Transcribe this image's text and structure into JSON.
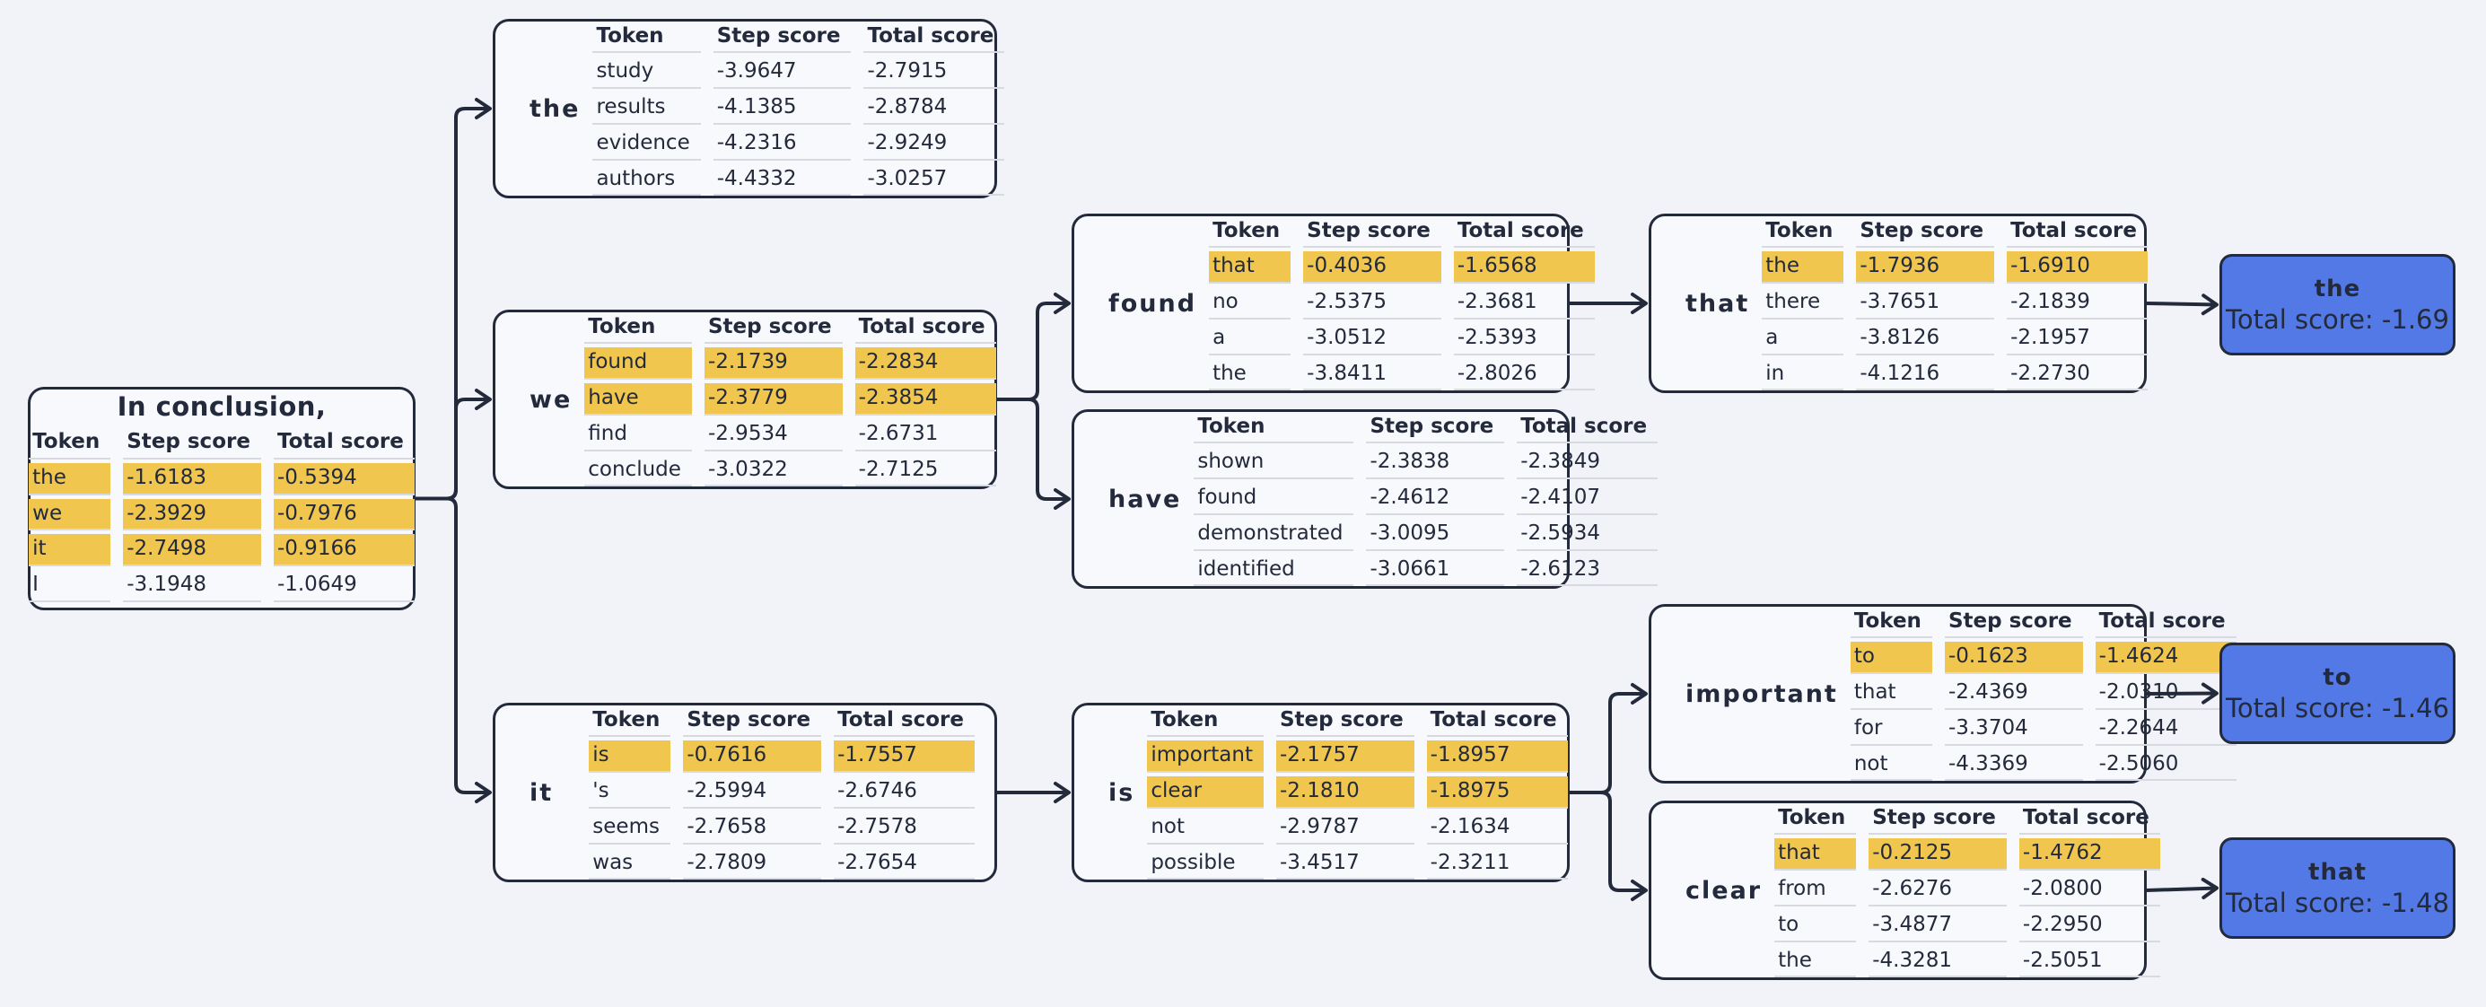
{
  "table_headers": [
    "Token",
    "Step score",
    "Total score"
  ],
  "root": {
    "title": "In conclusion,",
    "rows": [
      {
        "token": "the",
        "step": "-1.6183",
        "total": "-0.5394",
        "hl": true
      },
      {
        "token": "we",
        "step": "-2.3929",
        "total": "-0.7976",
        "hl": true
      },
      {
        "token": "it",
        "step": "-2.7498",
        "total": "-0.9166",
        "hl": true
      },
      {
        "token": "I",
        "step": "-3.1948",
        "total": "-1.0649",
        "hl": false
      }
    ]
  },
  "nodes": {
    "the": {
      "label": "the",
      "rows": [
        {
          "token": "study",
          "step": "-3.9647",
          "total": "-2.7915",
          "hl": false
        },
        {
          "token": "results",
          "step": "-4.1385",
          "total": "-2.8784",
          "hl": false
        },
        {
          "token": "evidence",
          "step": "-4.2316",
          "total": "-2.9249",
          "hl": false
        },
        {
          "token": "authors",
          "step": "-4.4332",
          "total": "-3.0257",
          "hl": false
        }
      ]
    },
    "we": {
      "label": "we",
      "rows": [
        {
          "token": "found",
          "step": "-2.1739",
          "total": "-2.2834",
          "hl": true
        },
        {
          "token": "have",
          "step": "-2.3779",
          "total": "-2.3854",
          "hl": true
        },
        {
          "token": "find",
          "step": "-2.9534",
          "total": "-2.6731",
          "hl": false
        },
        {
          "token": "conclude",
          "step": "-3.0322",
          "total": "-2.7125",
          "hl": false
        }
      ]
    },
    "it": {
      "label": "it",
      "rows": [
        {
          "token": "is",
          "step": "-0.7616",
          "total": "-1.7557",
          "hl": true
        },
        {
          "token": "'s",
          "step": "-2.5994",
          "total": "-2.6746",
          "hl": false
        },
        {
          "token": "seems",
          "step": "-2.7658",
          "total": "-2.7578",
          "hl": false
        },
        {
          "token": "was",
          "step": "-2.7809",
          "total": "-2.7654",
          "hl": false
        }
      ]
    },
    "found": {
      "label": "found",
      "rows": [
        {
          "token": "that",
          "step": "-0.4036",
          "total": "-1.6568",
          "hl": true
        },
        {
          "token": "no",
          "step": "-2.5375",
          "total": "-2.3681",
          "hl": false
        },
        {
          "token": "a",
          "step": "-3.0512",
          "total": "-2.5393",
          "hl": false
        },
        {
          "token": "the",
          "step": "-3.8411",
          "total": "-2.8026",
          "hl": false
        }
      ]
    },
    "have": {
      "label": "have",
      "rows": [
        {
          "token": "shown",
          "step": "-2.3838",
          "total": "-2.3849",
          "hl": false
        },
        {
          "token": "found",
          "step": "-2.4612",
          "total": "-2.4107",
          "hl": false
        },
        {
          "token": "demonstrated",
          "step": "-3.0095",
          "total": "-2.5934",
          "hl": false
        },
        {
          "token": "identified",
          "step": "-3.0661",
          "total": "-2.6123",
          "hl": false
        }
      ]
    },
    "that": {
      "label": "that",
      "rows": [
        {
          "token": "the",
          "step": "-1.7936",
          "total": "-1.6910",
          "hl": true
        },
        {
          "token": "there",
          "step": "-3.7651",
          "total": "-2.1839",
          "hl": false
        },
        {
          "token": "a",
          "step": "-3.8126",
          "total": "-2.1957",
          "hl": false
        },
        {
          "token": "in",
          "step": "-4.1216",
          "total": "-2.2730",
          "hl": false
        }
      ]
    },
    "is": {
      "label": "is",
      "rows": [
        {
          "token": "important",
          "step": "-2.1757",
          "total": "-1.8957",
          "hl": true
        },
        {
          "token": "clear",
          "step": "-2.1810",
          "total": "-1.8975",
          "hl": true
        },
        {
          "token": "not",
          "step": "-2.9787",
          "total": "-2.1634",
          "hl": false
        },
        {
          "token": "possible",
          "step": "-3.4517",
          "total": "-2.3211",
          "hl": false
        }
      ]
    },
    "important": {
      "label": "important",
      "rows": [
        {
          "token": "to",
          "step": "-0.1623",
          "total": "-1.4624",
          "hl": true
        },
        {
          "token": "that",
          "step": "-2.4369",
          "total": "-2.0310",
          "hl": false
        },
        {
          "token": "for",
          "step": "-3.3704",
          "total": "-2.2644",
          "hl": false
        },
        {
          "token": "not",
          "step": "-4.3369",
          "total": "-2.5060",
          "hl": false
        }
      ]
    },
    "clear": {
      "label": "clear",
      "rows": [
        {
          "token": "that",
          "step": "-0.2125",
          "total": "-1.4762",
          "hl": true
        },
        {
          "token": "from",
          "step": "-2.6276",
          "total": "-2.0800",
          "hl": false
        },
        {
          "token": "to",
          "step": "-3.4877",
          "total": "-2.2950",
          "hl": false
        },
        {
          "token": "the",
          "step": "-4.3281",
          "total": "-2.5051",
          "hl": false
        }
      ]
    }
  },
  "results": [
    {
      "id": "result_the",
      "token": "the",
      "score_text": "Total score: -1.69"
    },
    {
      "id": "result_to",
      "token": "to",
      "score_text": "Total score: -1.46"
    },
    {
      "id": "result_that",
      "token": "that",
      "score_text": "Total score: -1.48"
    }
  ],
  "edges": [
    {
      "from": "root",
      "to": "the"
    },
    {
      "from": "root",
      "to": "we"
    },
    {
      "from": "root",
      "to": "it"
    },
    {
      "from": "we",
      "to": "found"
    },
    {
      "from": "we",
      "to": "have"
    },
    {
      "from": "found",
      "to": "that"
    },
    {
      "from": "that",
      "to": "result_the"
    },
    {
      "from": "it",
      "to": "is"
    },
    {
      "from": "is",
      "to": "important"
    },
    {
      "from": "is",
      "to": "clear"
    },
    {
      "from": "important",
      "to": "result_to"
    },
    {
      "from": "clear",
      "to": "result_that"
    }
  ],
  "colors": {
    "highlight": "#f0c64e",
    "result_fill": "#5279e5",
    "border": "#232a3b",
    "background": "#f2f3f8"
  }
}
